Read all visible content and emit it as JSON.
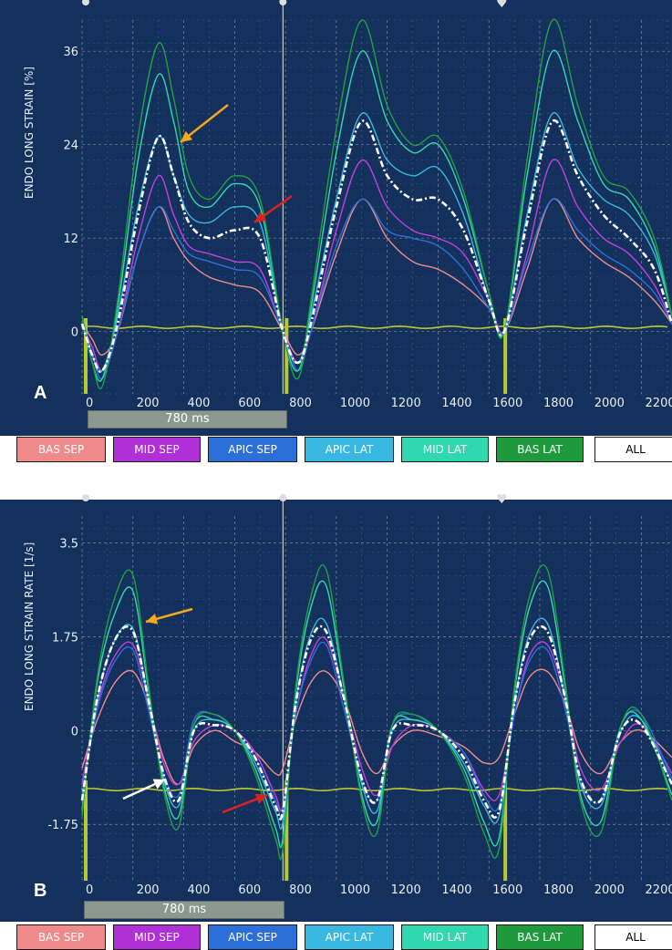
{
  "panels": [
    {
      "id": "A",
      "letter": "A",
      "duration_label": "780 ms",
      "legend": [
        "BAS SEP",
        "MID SEP",
        "APIC SEP",
        "APIC LAT",
        "MID LAT",
        "BAS LAT",
        "ALL"
      ]
    },
    {
      "id": "B",
      "letter": "B",
      "duration_label": "780 ms",
      "legend": [
        "BAS SEP",
        "MID SEP",
        "APIC SEP",
        "APIC LAT",
        "MID LAT",
        "BAS LAT",
        "ALL"
      ]
    }
  ],
  "colors": {
    "background": "#14305c",
    "grid": "#d0d0d0",
    "ecg": "#b8c832",
    "BAS SEP": "#f08a8a",
    "MID SEP": "#c040e0",
    "APIC SEP": "#2d6fd8",
    "APIC LAT": "#38b8e0",
    "MID LAT": "#30d8b0",
    "BAS LAT": "#20a040",
    "ALL": "#ffffff",
    "arrow_orange": "#f5a81c",
    "arrow_red": "#e02020",
    "arrow_white": "#ffffff"
  },
  "chart_data": [
    {
      "type": "line",
      "ylabel": "ENDO LONG STRAIN [%]",
      "yticks": [
        36,
        24,
        12,
        0
      ],
      "xticks": [
        0,
        200,
        400,
        600,
        800,
        1000,
        1200,
        1400,
        1600,
        1800,
        2000,
        2200
      ],
      "xlim": [
        0,
        2320
      ],
      "ylim": [
        -8,
        40
      ],
      "grid": true,
      "markers_ms": [
        0,
        790,
        1650
      ],
      "series": [
        {
          "name": "BAS SEP",
          "x": [
            0,
            40,
            80,
            140,
            220,
            300,
            360,
            420,
            500,
            600,
            700,
            790,
            850,
            900,
            1000,
            1100,
            1200,
            1300,
            1400,
            1500,
            1600,
            1660,
            1750,
            1850,
            1950,
            2050,
            2150,
            2250,
            2320
          ],
          "y": [
            1,
            -1,
            -3,
            0,
            10,
            16,
            12,
            9,
            7,
            6,
            5,
            0,
            -3,
            0,
            10,
            17,
            12,
            9,
            8,
            6,
            3,
            0,
            8,
            17,
            12,
            9,
            7,
            4,
            1
          ]
        },
        {
          "name": "MID SEP",
          "x": [
            0,
            40,
            80,
            140,
            220,
            300,
            360,
            420,
            500,
            600,
            700,
            790,
            850,
            900,
            1000,
            1100,
            1200,
            1300,
            1400,
            1500,
            1600,
            1660,
            1750,
            1850,
            1950,
            2050,
            2150,
            2250,
            2320
          ],
          "y": [
            1,
            -2,
            -5,
            0,
            12,
            20,
            15,
            11,
            10,
            9,
            8,
            0,
            -4,
            0,
            13,
            22,
            16,
            13,
            12,
            10,
            4,
            0,
            10,
            22,
            16,
            12,
            10,
            6,
            1
          ]
        },
        {
          "name": "APIC SEP",
          "x": [
            0,
            40,
            80,
            140,
            220,
            300,
            360,
            420,
            500,
            600,
            700,
            790,
            850,
            900,
            1000,
            1100,
            1200,
            1300,
            1400,
            1500,
            1600,
            1660,
            1750,
            1850,
            1950,
            2050,
            2150,
            2250,
            2320
          ],
          "y": [
            2,
            -3,
            -6,
            0,
            10,
            16,
            13,
            10,
            9,
            8,
            7,
            0,
            -5,
            0,
            11,
            17,
            13,
            12,
            11,
            8,
            3,
            0,
            9,
            17,
            13,
            10,
            8,
            5,
            1
          ]
        },
        {
          "name": "APIC LAT",
          "x": [
            0,
            40,
            80,
            140,
            220,
            300,
            360,
            420,
            500,
            600,
            700,
            790,
            850,
            900,
            1000,
            1100,
            1200,
            1300,
            1400,
            1500,
            1600,
            1660,
            1750,
            1850,
            1950,
            2050,
            2150,
            2250,
            2320
          ],
          "y": [
            2,
            -3,
            -5,
            2,
            16,
            25,
            20,
            15,
            14,
            16,
            14,
            0,
            -4,
            2,
            17,
            28,
            22,
            20,
            21,
            15,
            4,
            0,
            15,
            28,
            21,
            17,
            15,
            10,
            2
          ]
        },
        {
          "name": "MID LAT",
          "x": [
            0,
            40,
            80,
            140,
            220,
            300,
            360,
            420,
            500,
            600,
            700,
            790,
            850,
            900,
            1000,
            1100,
            1200,
            1300,
            1400,
            1500,
            1600,
            1660,
            1750,
            1850,
            1950,
            2050,
            2150,
            2250,
            2320
          ],
          "y": [
            2,
            -4,
            -6,
            3,
            22,
            33,
            27,
            18,
            16,
            19,
            16,
            0,
            -5,
            3,
            23,
            36,
            27,
            23,
            24,
            17,
            5,
            0,
            20,
            36,
            27,
            19,
            17,
            11,
            2
          ]
        },
        {
          "name": "BAS LAT",
          "x": [
            0,
            40,
            80,
            140,
            220,
            300,
            360,
            420,
            500,
            600,
            700,
            790,
            850,
            900,
            1000,
            1100,
            1200,
            1300,
            1400,
            1500,
            1600,
            1660,
            1750,
            1850,
            1950,
            2050,
            2150,
            2250,
            2320
          ],
          "y": [
            2,
            -4,
            -7,
            4,
            25,
            37,
            30,
            20,
            17,
            20,
            17,
            0,
            -6,
            4,
            26,
            40,
            29,
            24,
            25,
            18,
            5,
            0,
            22,
            40,
            29,
            20,
            18,
            12,
            2
          ]
        },
        {
          "name": "ALL",
          "x": [
            0,
            40,
            80,
            140,
            220,
            300,
            360,
            420,
            500,
            600,
            700,
            790,
            850,
            900,
            1000,
            1100,
            1200,
            1300,
            1400,
            1500,
            1600,
            1660,
            1750,
            1850,
            1950,
            2050,
            2150,
            2250,
            2320
          ],
          "y": [
            1,
            -3,
            -5,
            1,
            15,
            25,
            20,
            14,
            12,
            13,
            12,
            0,
            -4,
            1,
            16,
            27,
            20,
            17,
            17,
            13,
            4,
            0,
            14,
            27,
            20,
            15,
            12,
            8,
            1
          ]
        }
      ]
    },
    {
      "type": "line",
      "ylabel": "ENDO LONG STRAIN RATE [1/s]",
      "yticks": [
        3.5,
        1.75,
        0,
        -1.75
      ],
      "xticks": [
        0,
        200,
        400,
        600,
        800,
        1000,
        1200,
        1400,
        1600,
        1800,
        2000,
        2200
      ],
      "xlim": [
        0,
        2320
      ],
      "ylim": [
        -2.8,
        4.0
      ],
      "grid": true,
      "markers_ms": [
        0,
        790,
        1650
      ],
      "series": [
        {
          "name": "BAS SEP",
          "x": [
            0,
            60,
            130,
            200,
            260,
            320,
            380,
            440,
            520,
            600,
            680,
            760,
            790,
            840,
            900,
            960,
            1030,
            1100,
            1160,
            1220,
            1300,
            1400,
            1500,
            1580,
            1640,
            1700,
            1760,
            1830,
            1900,
            1960,
            2040,
            2120,
            2200,
            2320
          ],
          "y": [
            -0.7,
            0.2,
            0.9,
            1.1,
            0.5,
            -0.5,
            -1.0,
            -0.3,
            0.0,
            -0.2,
            -0.4,
            -0.8,
            -0.7,
            0.2,
            0.9,
            1.1,
            0.6,
            -0.4,
            -0.8,
            -0.3,
            0.0,
            -0.1,
            -0.3,
            -0.6,
            -0.5,
            0.3,
            1.0,
            1.1,
            0.5,
            -0.4,
            -0.8,
            -0.2,
            0.0,
            -0.5
          ]
        },
        {
          "name": "MID SEP",
          "x": [
            0,
            60,
            130,
            200,
            260,
            320,
            380,
            440,
            520,
            600,
            680,
            760,
            790,
            840,
            900,
            960,
            1030,
            1100,
            1160,
            1220,
            1300,
            1400,
            1500,
            1580,
            1640,
            1700,
            1760,
            1830,
            1900,
            1960,
            2040,
            2120,
            2200,
            2320
          ],
          "y": [
            -1.0,
            0.5,
            1.4,
            1.6,
            0.6,
            -0.6,
            -1.0,
            -0.2,
            0.1,
            0.0,
            -0.4,
            -1.2,
            -1.4,
            0.3,
            1.4,
            1.7,
            0.6,
            -0.7,
            -1.2,
            -0.3,
            0.1,
            0.0,
            -0.4,
            -1.1,
            -1.2,
            0.3,
            1.4,
            1.6,
            0.6,
            -0.7,
            -1.1,
            -0.2,
            0.1,
            -0.8
          ]
        },
        {
          "name": "APIC SEP",
          "x": [
            0,
            60,
            130,
            200,
            260,
            320,
            380,
            440,
            520,
            600,
            680,
            760,
            790,
            840,
            900,
            960,
            1030,
            1100,
            1160,
            1220,
            1300,
            1400,
            1500,
            1580,
            1640,
            1700,
            1760,
            1830,
            1900,
            1960,
            2040,
            2120,
            2200,
            2320
          ],
          "y": [
            -1.2,
            0.4,
            1.3,
            1.5,
            0.4,
            -0.8,
            -1.2,
            0.2,
            0.3,
            0.0,
            -0.5,
            -1.3,
            -1.5,
            0.3,
            1.3,
            1.6,
            0.4,
            -0.9,
            -1.3,
            0.1,
            0.3,
            0.0,
            -0.4,
            -1.2,
            -1.4,
            0.3,
            1.3,
            1.5,
            0.4,
            -0.9,
            -1.3,
            0.1,
            0.3,
            -0.9
          ]
        },
        {
          "name": "APIC LAT",
          "x": [
            0,
            60,
            130,
            200,
            260,
            320,
            380,
            440,
            520,
            600,
            680,
            760,
            790,
            840,
            900,
            960,
            1030,
            1100,
            1160,
            1220,
            1300,
            1400,
            1500,
            1580,
            1640,
            1700,
            1760,
            1830,
            1900,
            1960,
            2040,
            2120,
            2200,
            2320
          ],
          "y": [
            -1.3,
            0.6,
            1.7,
            1.9,
            0.6,
            -0.9,
            -1.4,
            0.0,
            0.2,
            0.0,
            -0.6,
            -1.5,
            -1.7,
            0.5,
            1.8,
            2.0,
            0.6,
            -1.0,
            -1.5,
            0.0,
            0.2,
            0.0,
            -0.6,
            -1.4,
            -1.6,
            0.5,
            1.8,
            2.0,
            0.6,
            -1.0,
            -1.4,
            0.0,
            0.2,
            -1.0
          ]
        },
        {
          "name": "MID LAT",
          "x": [
            0,
            60,
            130,
            200,
            260,
            320,
            380,
            440,
            520,
            600,
            680,
            760,
            790,
            840,
            900,
            960,
            1030,
            1100,
            1160,
            1220,
            1300,
            1400,
            1500,
            1580,
            1640,
            1700,
            1760,
            1830,
            1900,
            1960,
            2040,
            2120,
            2200,
            2320
          ],
          "y": [
            -1.5,
            0.9,
            2.2,
            2.6,
            0.8,
            -1.0,
            -1.6,
            0.1,
            0.2,
            0.0,
            -0.7,
            -1.8,
            -2.0,
            0.7,
            2.3,
            2.7,
            0.8,
            -1.2,
            -1.7,
            0.1,
            0.2,
            0.0,
            -0.7,
            -1.7,
            -2.0,
            0.7,
            2.3,
            2.7,
            0.8,
            -1.2,
            -1.7,
            0.1,
            0.2,
            -1.2
          ]
        },
        {
          "name": "BAS LAT",
          "x": [
            0,
            60,
            130,
            200,
            260,
            320,
            380,
            440,
            520,
            600,
            680,
            760,
            790,
            840,
            900,
            960,
            1030,
            1100,
            1160,
            1220,
            1300,
            1400,
            1500,
            1580,
            1640,
            1700,
            1760,
            1830,
            1900,
            1960,
            2040,
            2120,
            2200,
            2320
          ],
          "y": [
            -1.6,
            1.0,
            2.5,
            2.9,
            0.9,
            -1.1,
            -1.8,
            0.1,
            0.3,
            0.0,
            -0.8,
            -2.0,
            -2.2,
            0.8,
            2.5,
            3.0,
            0.9,
            -1.3,
            -1.9,
            0.1,
            0.3,
            0.0,
            -0.8,
            -1.9,
            -2.2,
            0.8,
            2.5,
            3.0,
            0.9,
            -1.3,
            -1.9,
            0.1,
            0.3,
            -1.3
          ]
        },
        {
          "name": "ALL",
          "x": [
            0,
            60,
            130,
            200,
            260,
            320,
            380,
            440,
            520,
            600,
            680,
            760,
            790,
            840,
            900,
            960,
            1030,
            1100,
            1160,
            1220,
            1300,
            1400,
            1500,
            1580,
            1640,
            1700,
            1760,
            1830,
            1900,
            1960,
            2040,
            2120,
            2200,
            2320
          ],
          "y": [
            -1.3,
            0.6,
            1.7,
            1.85,
            0.6,
            -0.8,
            -1.3,
            0.0,
            0.1,
            0.0,
            -0.5,
            -1.4,
            -1.5,
            0.5,
            1.7,
            1.85,
            0.6,
            -0.9,
            -1.3,
            0.0,
            0.1,
            0.0,
            -0.5,
            -1.3,
            -1.5,
            0.5,
            1.7,
            1.85,
            0.6,
            -0.9,
            -1.3,
            0.0,
            0.1,
            -1.0
          ]
        }
      ]
    }
  ]
}
